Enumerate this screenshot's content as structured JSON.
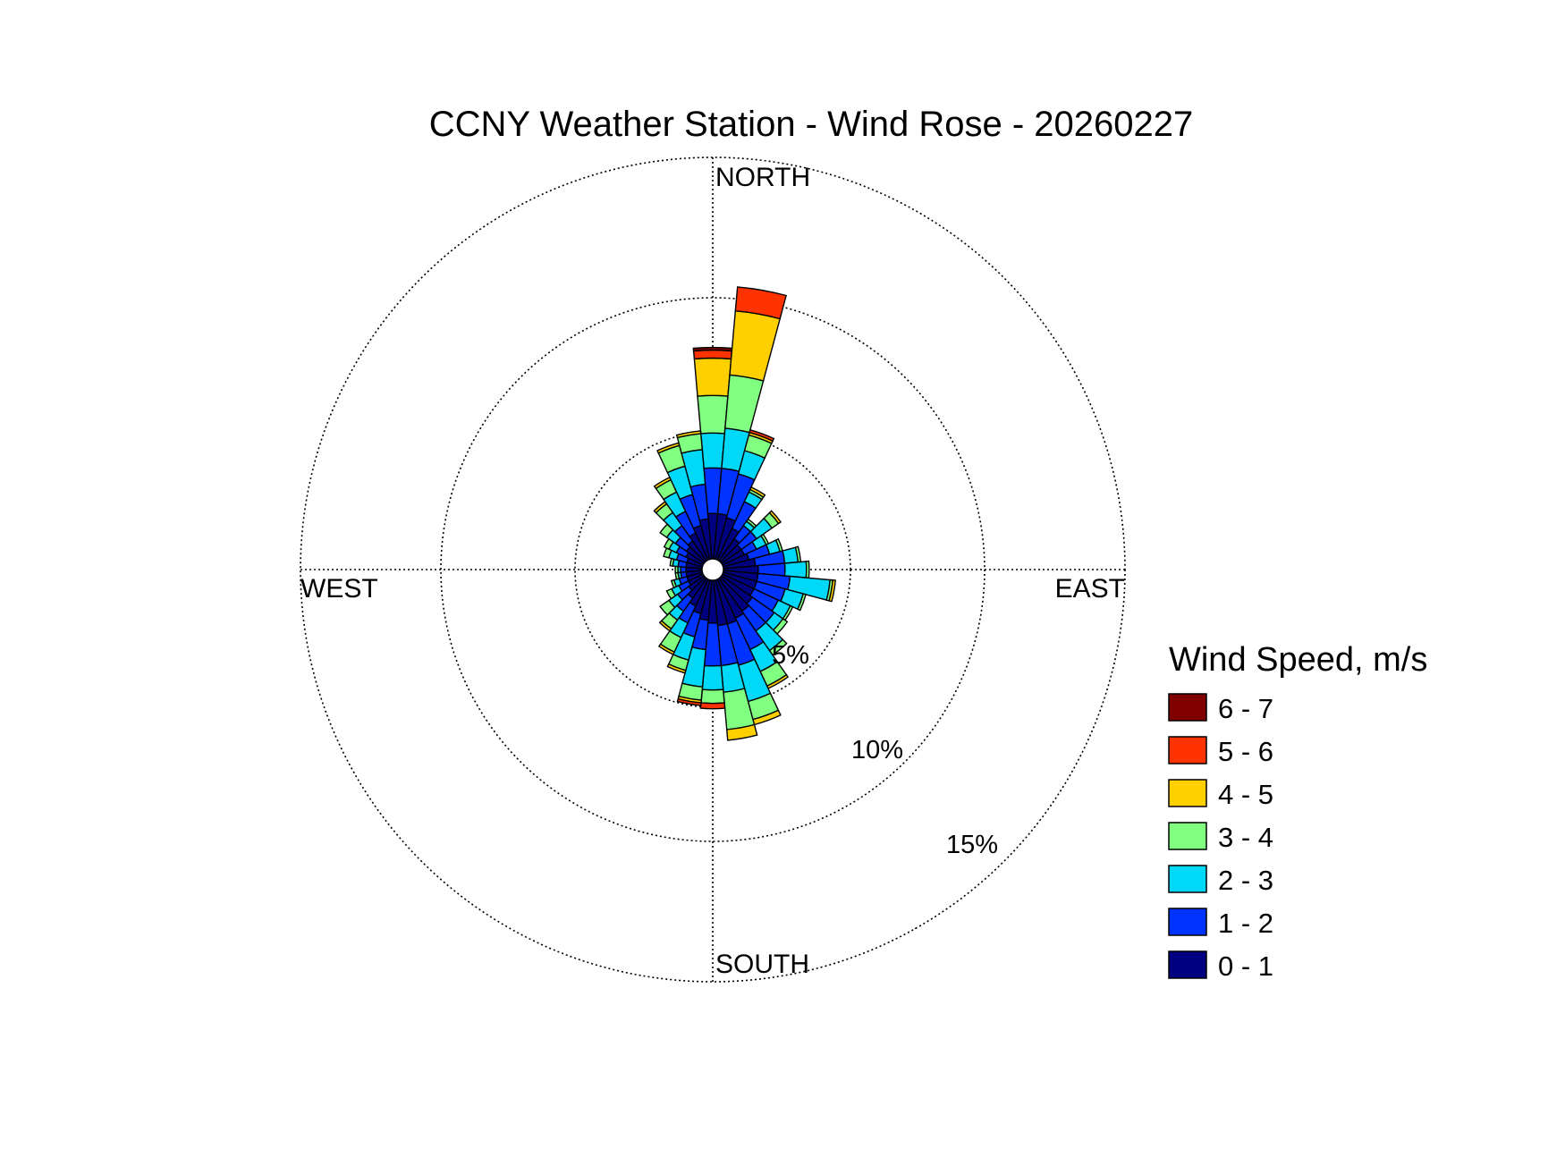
{
  "chart_data": {
    "type": "wind_rose",
    "title": "CCNY Weather Station - Wind Rose - 20260227",
    "compass_labels": {
      "north": "NORTH",
      "east": "EAST",
      "south": "SOUTH",
      "west": "WEST"
    },
    "radial_axis": {
      "unit": "%",
      "max": 15,
      "ticks": [
        5,
        10,
        15
      ],
      "tick_labels": [
        "5%",
        "10%",
        "15%"
      ]
    },
    "legend": {
      "title": "Wind Speed, m/s",
      "bins": [
        {
          "label": "6 - 7",
          "color": "#800000"
        },
        {
          "label": "5 - 6",
          "color": "#FF3300"
        },
        {
          "label": "4 - 5",
          "color": "#FFD000"
        },
        {
          "label": "3 - 4",
          "color": "#80FF80"
        },
        {
          "label": "2 - 3",
          "color": "#00D8F8"
        },
        {
          "label": "1 - 2",
          "color": "#0033FF"
        },
        {
          "label": "0 - 1",
          "color": "#000080"
        }
      ]
    },
    "speed_bins": [
      "0 - 1",
      "1 - 2",
      "2 - 3",
      "3 - 4",
      "4 - 5",
      "5 - 6",
      "6 - 7"
    ],
    "colors": [
      "#000080",
      "#0033FF",
      "#00D8F8",
      "#80FF80",
      "#FFD000",
      "#FF3300",
      "#800000"
    ],
    "sector_width_deg": 10,
    "sectors": [
      {
        "dir": 0,
        "cumulative": [
          1.7,
          3.4,
          4.7,
          6.1,
          7.5,
          7.8,
          7.9
        ]
      },
      {
        "dir": 10,
        "cumulative": [
          1.7,
          3.4,
          4.9,
          6.9,
          9.3,
          10.2,
          10.2
        ]
      },
      {
        "dir": 20,
        "cumulative": [
          1.6,
          3.3,
          4.2,
          4.8,
          4.9,
          5.0,
          5.0
        ]
      },
      {
        "dir": 30,
        "cumulative": [
          1.3,
          2.4,
          2.8,
          2.9,
          3.0,
          3.0,
          3.0
        ]
      },
      {
        "dir": 40,
        "cumulative": [
          1.0,
          1.6,
          1.8,
          1.9,
          1.9,
          1.9,
          1.9
        ]
      },
      {
        "dir": 50,
        "cumulative": [
          0.9,
          1.6,
          2.3,
          2.6,
          2.7,
          2.7,
          2.7
        ]
      },
      {
        "dir": 60,
        "cumulative": [
          0.9,
          1.4,
          1.8,
          1.9,
          1.9,
          1.9,
          1.9
        ]
      },
      {
        "dir": 70,
        "cumulative": [
          1.0,
          1.8,
          2.2,
          2.3,
          2.3,
          2.3,
          2.3
        ]
      },
      {
        "dir": 80,
        "cumulative": [
          1.2,
          2.3,
          2.8,
          2.9,
          2.9,
          2.9,
          2.9
        ]
      },
      {
        "dir": 90,
        "cumulative": [
          1.3,
          2.3,
          3.1,
          3.2,
          3.2,
          3.2,
          3.2
        ]
      },
      {
        "dir": 100,
        "cumulative": [
          1.3,
          2.5,
          4.0,
          4.1,
          4.2,
          4.2,
          4.2
        ]
      },
      {
        "dir": 110,
        "cumulative": [
          1.3,
          2.4,
          3.1,
          3.2,
          3.2,
          3.2,
          3.2
        ]
      },
      {
        "dir": 120,
        "cumulative": [
          1.3,
          2.3,
          2.8,
          2.9,
          2.9,
          2.9,
          2.9
        ]
      },
      {
        "dir": 130,
        "cumulative": [
          1.4,
          2.4,
          2.8,
          3.0,
          3.0,
          3.0,
          3.0
        ]
      },
      {
        "dir": 140,
        "cumulative": [
          1.5,
          2.4,
          3.3,
          3.5,
          3.5,
          3.5,
          3.5
        ]
      },
      {
        "dir": 150,
        "cumulative": [
          1.6,
          2.9,
          3.8,
          4.4,
          4.5,
          4.5,
          4.5
        ]
      },
      {
        "dir": 160,
        "cumulative": [
          1.7,
          3.3,
          4.7,
          5.4,
          5.6,
          5.6,
          5.6
        ]
      },
      {
        "dir": 170,
        "cumulative": [
          1.7,
          3.2,
          4.2,
          5.6,
          6.0,
          6.0,
          6.0
        ]
      },
      {
        "dir": 180,
        "cumulative": [
          1.6,
          3.2,
          4.1,
          4.6,
          4.6,
          4.8,
          4.8
        ]
      },
      {
        "dir": 190,
        "cumulative": [
          1.5,
          2.6,
          4.0,
          4.5,
          4.6,
          4.7,
          4.7
        ]
      },
      {
        "dir": 200,
        "cumulative": [
          1.3,
          2.2,
          3.1,
          3.5,
          3.6,
          3.6,
          3.6
        ]
      },
      {
        "dir": 210,
        "cumulative": [
          1.1,
          1.8,
          2.4,
          3.0,
          3.1,
          3.1,
          3.1
        ]
      },
      {
        "dir": 220,
        "cumulative": [
          0.9,
          1.5,
          1.9,
          2.3,
          2.4,
          2.4,
          2.4
        ]
      },
      {
        "dir": 230,
        "cumulative": [
          0.7,
          1.2,
          1.6,
          2.0,
          2.0,
          2.0,
          2.0
        ]
      },
      {
        "dir": 240,
        "cumulative": [
          0.6,
          1.0,
          1.3,
          1.5,
          1.5,
          1.5,
          1.5
        ]
      },
      {
        "dir": 250,
        "cumulative": [
          0.6,
          0.9,
          1.1,
          1.2,
          1.2,
          1.2,
          1.2
        ]
      },
      {
        "dir": 260,
        "cumulative": [
          0.6,
          0.8,
          0.9,
          1.0,
          1.0,
          1.0,
          1.0
        ]
      },
      {
        "dir": 270,
        "cumulative": [
          0.6,
          0.8,
          0.9,
          1.0,
          1.0,
          1.0,
          1.0
        ]
      },
      {
        "dir": 280,
        "cumulative": [
          0.6,
          0.9,
          1.1,
          1.2,
          1.2,
          1.2,
          1.2
        ]
      },
      {
        "dir": 290,
        "cumulative": [
          0.6,
          1.0,
          1.3,
          1.5,
          1.5,
          1.5,
          1.5
        ]
      },
      {
        "dir": 300,
        "cumulative": [
          0.7,
          1.1,
          1.4,
          1.6,
          1.6,
          1.6,
          1.6
        ]
      },
      {
        "dir": 310,
        "cumulative": [
          0.8,
          1.3,
          1.7,
          2.0,
          2.0,
          2.0,
          2.0
        ]
      },
      {
        "dir": 320,
        "cumulative": [
          0.9,
          1.6,
          2.2,
          2.6,
          2.7,
          2.7,
          2.7
        ]
      },
      {
        "dir": 330,
        "cumulative": [
          1.1,
          2.0,
          2.8,
          3.3,
          3.4,
          3.4,
          3.4
        ]
      },
      {
        "dir": 340,
        "cumulative": [
          1.3,
          2.5,
          3.6,
          4.4,
          4.5,
          4.5,
          4.5
        ]
      },
      {
        "dir": 350,
        "cumulative": [
          1.5,
          2.8,
          4.1,
          4.7,
          4.8,
          4.8,
          4.8
        ]
      }
    ]
  }
}
